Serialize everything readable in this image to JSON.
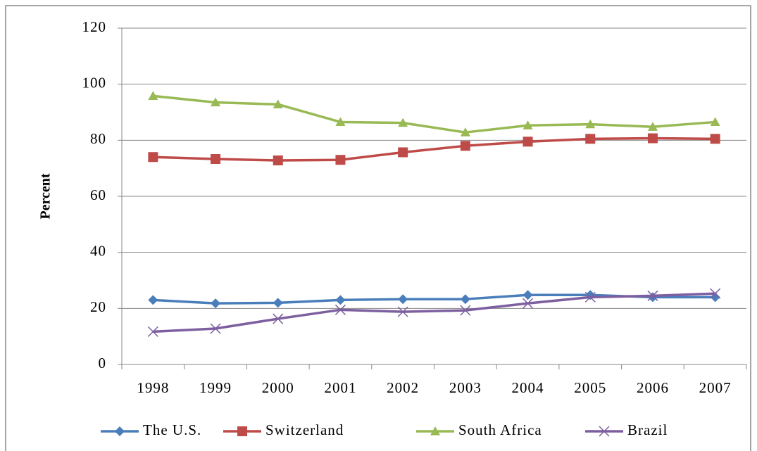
{
  "chart_data": {
    "type": "line",
    "y_label": "Percent",
    "categories": [
      "1998",
      "1999",
      "2000",
      "2001",
      "2002",
      "2003",
      "2004",
      "2005",
      "2006",
      "2007"
    ],
    "ylim": [
      0,
      120
    ],
    "yticks": [
      0,
      20,
      40,
      60,
      80,
      100,
      120
    ],
    "grid": true,
    "legend": "bottom",
    "series": [
      {
        "name": "The U.S.",
        "color": "#4a7ebb",
        "marker": "diamond",
        "values": [
          23,
          21.8,
          22,
          23,
          23.3,
          23.3,
          24.8,
          24.8,
          24,
          24
        ]
      },
      {
        "name": "Switzerland",
        "color": "#be4b48",
        "marker": "square",
        "values": [
          74,
          73.3,
          72.8,
          73,
          75.7,
          78,
          79.5,
          80.5,
          80.7,
          80.5
        ]
      },
      {
        "name": "South Africa",
        "color": "#98b954",
        "marker": "triangle",
        "values": [
          95.8,
          93.5,
          92.8,
          86.5,
          86.2,
          82.8,
          85.3,
          85.7,
          84.8,
          86.5
        ]
      },
      {
        "name": "Brazil",
        "color": "#7d5fa0",
        "marker": "x",
        "values": [
          11.7,
          12.8,
          16.3,
          19.5,
          18.8,
          19.3,
          21.8,
          24,
          24.5,
          25.3
        ]
      }
    ]
  }
}
